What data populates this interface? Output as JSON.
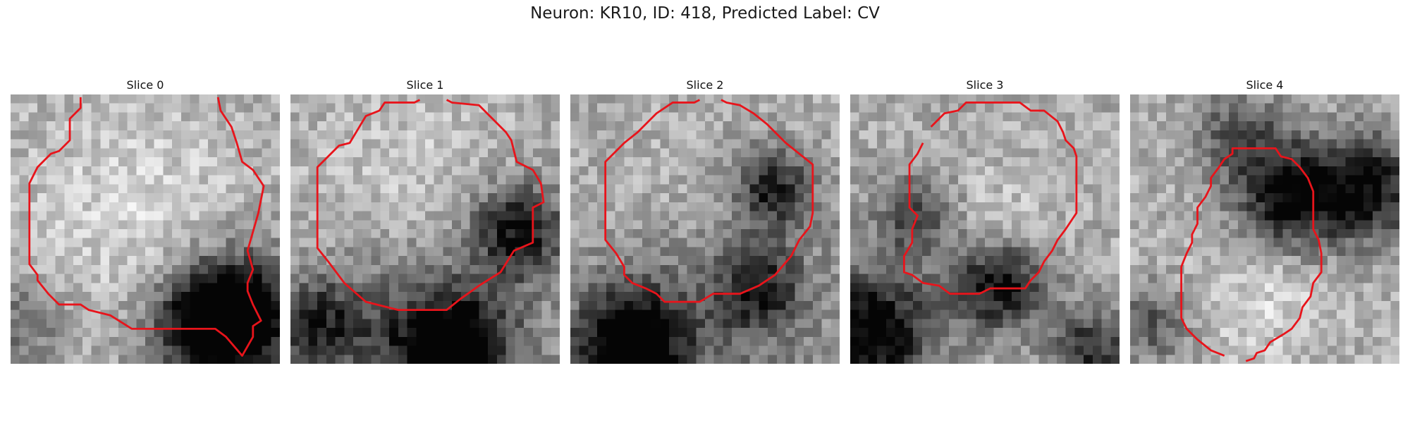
{
  "figure": {
    "title": "Neuron: KR10, ID: 418, Predicted Label: CV",
    "contour_color": "#e8141b"
  },
  "slices": [
    {
      "label": "Slice 0",
      "seed": 11,
      "dark_blobs": [
        [
          0.86,
          0.82,
          0.16,
          0.75
        ],
        [
          0.72,
          0.86,
          0.15,
          0.55
        ],
        [
          0.05,
          0.85,
          0.12,
          0.25
        ]
      ],
      "light_center": [
        0.45,
        0.42,
        0.28
      ]
    },
    {
      "label": "Slice 1",
      "seed": 23,
      "dark_blobs": [
        [
          0.85,
          0.5,
          0.12,
          0.6
        ],
        [
          0.6,
          0.95,
          0.14,
          0.7
        ],
        [
          0.1,
          0.85,
          0.12,
          0.45
        ],
        [
          0.5,
          0.88,
          0.3,
          0.35
        ]
      ],
      "light_center": [
        0.45,
        0.4,
        0.26
      ]
    },
    {
      "label": "Slice 2",
      "seed": 37,
      "dark_blobs": [
        [
          0.22,
          0.93,
          0.14,
          0.75
        ],
        [
          0.75,
          0.35,
          0.1,
          0.5
        ],
        [
          0.7,
          0.72,
          0.1,
          0.45
        ],
        [
          0.5,
          0.75,
          0.35,
          0.3
        ]
      ],
      "light_center": [
        0.42,
        0.45,
        0.24
      ]
    },
    {
      "label": "Slice 3",
      "seed": 49,
      "dark_blobs": [
        [
          0.08,
          0.88,
          0.16,
          0.75
        ],
        [
          0.55,
          0.7,
          0.12,
          0.7
        ],
        [
          0.9,
          0.95,
          0.12,
          0.5
        ],
        [
          0.25,
          0.45,
          0.12,
          0.4
        ]
      ],
      "light_center": [
        0.5,
        0.5,
        0.15
      ]
    },
    {
      "label": "Slice 4",
      "seed": 61,
      "dark_blobs": [
        [
          0.6,
          0.38,
          0.14,
          0.7
        ],
        [
          0.9,
          0.35,
          0.14,
          0.6
        ],
        [
          0.4,
          0.15,
          0.12,
          0.35
        ],
        [
          0.08,
          0.85,
          0.1,
          0.35
        ]
      ],
      "light_center": [
        0.5,
        0.75,
        0.18
      ]
    }
  ],
  "contours": [
    [
      [
        0.26,
        0.01
      ],
      [
        0.26,
        0.05
      ],
      [
        0.22,
        0.09
      ],
      [
        0.22,
        0.17
      ],
      [
        0.18,
        0.21
      ],
      [
        0.15,
        0.22
      ],
      [
        0.1,
        0.27
      ],
      [
        0.07,
        0.33
      ],
      [
        0.07,
        0.63
      ],
      [
        0.1,
        0.67
      ],
      [
        0.1,
        0.69
      ],
      [
        0.14,
        0.74
      ],
      [
        0.18,
        0.78
      ],
      [
        0.26,
        0.78
      ],
      [
        0.29,
        0.8
      ],
      [
        0.37,
        0.82
      ],
      [
        0.45,
        0.87
      ],
      [
        0.76,
        0.87
      ],
      [
        0.8,
        0.9
      ],
      [
        0.86,
        0.97
      ],
      [
        0.9,
        0.9
      ],
      [
        0.9,
        0.86
      ],
      [
        0.93,
        0.84
      ],
      [
        0.9,
        0.78
      ],
      [
        0.88,
        0.73
      ],
      [
        0.88,
        0.7
      ],
      [
        0.9,
        0.65
      ],
      [
        0.88,
        0.58
      ],
      [
        0.92,
        0.44
      ],
      [
        0.94,
        0.34
      ],
      [
        0.9,
        0.28
      ],
      [
        0.86,
        0.25
      ],
      [
        0.84,
        0.18
      ],
      [
        0.82,
        0.12
      ],
      [
        0.78,
        0.06
      ],
      [
        0.77,
        0.01
      ]
    ],
    [
      [
        0.48,
        0.02
      ],
      [
        0.46,
        0.03
      ],
      [
        0.35,
        0.03
      ],
      [
        0.33,
        0.06
      ],
      [
        0.28,
        0.08
      ],
      [
        0.25,
        0.13
      ],
      [
        0.22,
        0.18
      ],
      [
        0.18,
        0.19
      ],
      [
        0.1,
        0.27
      ],
      [
        0.1,
        0.57
      ],
      [
        0.14,
        0.62
      ],
      [
        0.2,
        0.7
      ],
      [
        0.28,
        0.77
      ],
      [
        0.4,
        0.8
      ],
      [
        0.58,
        0.8
      ],
      [
        0.63,
        0.76
      ],
      [
        0.7,
        0.71
      ],
      [
        0.78,
        0.66
      ],
      [
        0.83,
        0.58
      ],
      [
        0.9,
        0.55
      ],
      [
        0.9,
        0.42
      ],
      [
        0.94,
        0.4
      ],
      [
        0.93,
        0.33
      ],
      [
        0.9,
        0.28
      ],
      [
        0.84,
        0.25
      ],
      [
        0.82,
        0.17
      ],
      [
        0.8,
        0.14
      ],
      [
        0.7,
        0.04
      ],
      [
        0.6,
        0.03
      ],
      [
        0.58,
        0.02
      ]
    ],
    [
      [
        0.48,
        0.02
      ],
      [
        0.46,
        0.03
      ],
      [
        0.38,
        0.03
      ],
      [
        0.32,
        0.07
      ],
      [
        0.25,
        0.14
      ],
      [
        0.2,
        0.18
      ],
      [
        0.13,
        0.25
      ],
      [
        0.13,
        0.54
      ],
      [
        0.17,
        0.59
      ],
      [
        0.2,
        0.64
      ],
      [
        0.2,
        0.67
      ],
      [
        0.23,
        0.7
      ],
      [
        0.28,
        0.72
      ],
      [
        0.32,
        0.74
      ],
      [
        0.35,
        0.77
      ],
      [
        0.48,
        0.77
      ],
      [
        0.53,
        0.74
      ],
      [
        0.63,
        0.74
      ],
      [
        0.7,
        0.71
      ],
      [
        0.76,
        0.67
      ],
      [
        0.82,
        0.6
      ],
      [
        0.85,
        0.54
      ],
      [
        0.89,
        0.49
      ],
      [
        0.9,
        0.44
      ],
      [
        0.9,
        0.26
      ],
      [
        0.85,
        0.22
      ],
      [
        0.8,
        0.18
      ],
      [
        0.76,
        0.14
      ],
      [
        0.73,
        0.11
      ],
      [
        0.68,
        0.07
      ],
      [
        0.63,
        0.04
      ],
      [
        0.58,
        0.03
      ],
      [
        0.56,
        0.02
      ]
    ],
    [
      [
        0.3,
        0.12
      ],
      [
        0.35,
        0.07
      ],
      [
        0.4,
        0.06
      ],
      [
        0.43,
        0.03
      ],
      [
        0.63,
        0.03
      ],
      [
        0.67,
        0.06
      ],
      [
        0.72,
        0.06
      ],
      [
        0.77,
        0.1
      ],
      [
        0.79,
        0.14
      ],
      [
        0.8,
        0.17
      ],
      [
        0.83,
        0.2
      ],
      [
        0.84,
        0.23
      ],
      [
        0.84,
        0.44
      ],
      [
        0.8,
        0.5
      ],
      [
        0.77,
        0.54
      ],
      [
        0.75,
        0.58
      ],
      [
        0.72,
        0.62
      ],
      [
        0.7,
        0.66
      ],
      [
        0.67,
        0.69
      ],
      [
        0.65,
        0.72
      ],
      [
        0.52,
        0.72
      ],
      [
        0.48,
        0.74
      ],
      [
        0.37,
        0.74
      ],
      [
        0.33,
        0.71
      ],
      [
        0.27,
        0.7
      ],
      [
        0.23,
        0.67
      ],
      [
        0.2,
        0.66
      ],
      [
        0.2,
        0.6
      ],
      [
        0.23,
        0.55
      ],
      [
        0.23,
        0.5
      ],
      [
        0.25,
        0.45
      ],
      [
        0.22,
        0.42
      ],
      [
        0.22,
        0.26
      ],
      [
        0.25,
        0.22
      ],
      [
        0.27,
        0.18
      ]
    ],
    [
      [
        0.35,
        0.97
      ],
      [
        0.3,
        0.95
      ],
      [
        0.25,
        0.91
      ],
      [
        0.21,
        0.87
      ],
      [
        0.19,
        0.83
      ],
      [
        0.19,
        0.64
      ],
      [
        0.21,
        0.59
      ],
      [
        0.23,
        0.55
      ],
      [
        0.23,
        0.52
      ],
      [
        0.25,
        0.48
      ],
      [
        0.25,
        0.42
      ],
      [
        0.28,
        0.38
      ],
      [
        0.3,
        0.34
      ],
      [
        0.3,
        0.31
      ],
      [
        0.33,
        0.27
      ],
      [
        0.35,
        0.24
      ],
      [
        0.38,
        0.22
      ],
      [
        0.38,
        0.2
      ],
      [
        0.54,
        0.2
      ],
      [
        0.56,
        0.23
      ],
      [
        0.6,
        0.24
      ],
      [
        0.63,
        0.27
      ],
      [
        0.66,
        0.31
      ],
      [
        0.68,
        0.36
      ],
      [
        0.68,
        0.5
      ],
      [
        0.7,
        0.54
      ],
      [
        0.71,
        0.59
      ],
      [
        0.71,
        0.66
      ],
      [
        0.68,
        0.7
      ],
      [
        0.67,
        0.75
      ],
      [
        0.64,
        0.79
      ],
      [
        0.63,
        0.83
      ],
      [
        0.6,
        0.87
      ],
      [
        0.57,
        0.89
      ],
      [
        0.52,
        0.92
      ],
      [
        0.5,
        0.95
      ],
      [
        0.47,
        0.96
      ],
      [
        0.46,
        0.98
      ],
      [
        0.43,
        0.99
      ]
    ]
  ]
}
